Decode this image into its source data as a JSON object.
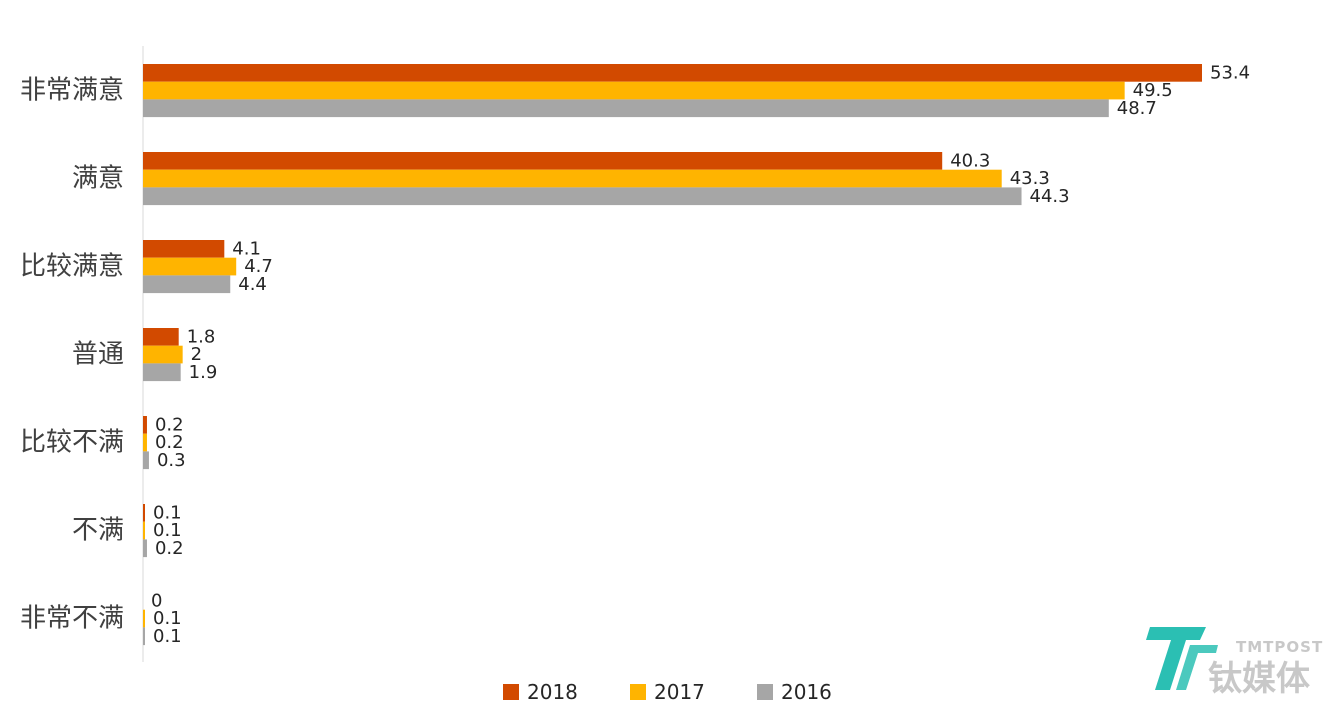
{
  "chart_data": {
    "type": "bar",
    "orientation": "horizontal",
    "categories": [
      "非常满意",
      "满意",
      "比较满意",
      "普通",
      "比较不满",
      "不满",
      "非常不满"
    ],
    "series": [
      {
        "name": "2018",
        "color": "#d24a00",
        "values": [
          53.4,
          40.3,
          4.1,
          1.8,
          0.2,
          0.1,
          0
        ]
      },
      {
        "name": "2017",
        "color": "#ffb400",
        "values": [
          49.5,
          43.3,
          4.7,
          2,
          0.2,
          0.1,
          0.1
        ]
      },
      {
        "name": "2016",
        "color": "#a6a6a6",
        "values": [
          48.7,
          44.3,
          4.4,
          1.9,
          0.3,
          0.2,
          0.1
        ]
      }
    ],
    "title": "",
    "xlabel": "",
    "ylabel": "",
    "xlim": [
      0,
      53.4
    ],
    "grid": false,
    "legend": "bottom"
  },
  "watermark": {
    "brand_en": "TMTPOST",
    "brand_zh": "钛媒体",
    "logo_color": "#2bbfb3"
  }
}
